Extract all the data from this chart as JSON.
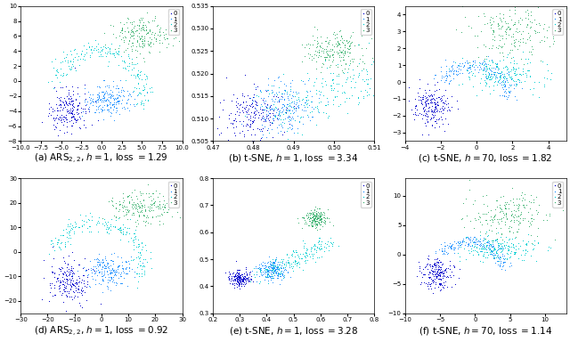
{
  "colors": [
    "#0000CD",
    "#1E90FF",
    "#00CED1",
    "#3CB371"
  ],
  "class_labels": [
    "0",
    "1",
    "2",
    "3"
  ],
  "marker_size": 2,
  "background_color": "#ffffff",
  "legend_fontsize": 5,
  "label_fontsize": 7.5,
  "tick_fontsize": 5,
  "panels": [
    {
      "id": "a",
      "title": "(a) ARS$_{2,2}$, $h = 1$, loss $= 1.29$",
      "xlim": [
        -10,
        10
      ],
      "ylim": [
        -8,
        10
      ],
      "xticks": [
        -10,
        -8,
        -6,
        -4,
        -2,
        0,
        2,
        4,
        6,
        8,
        10
      ],
      "shape": "ars_top"
    },
    {
      "id": "b",
      "title": "(b) t-SNE, $h = 1$, loss $= 3.34$",
      "xlim": [
        0.47,
        0.51
      ],
      "ylim": [
        0.505,
        0.535
      ],
      "shape": "tsne_h1_top"
    },
    {
      "id": "c",
      "title": "(c) t-SNE, $h = 70$, loss $= 1.82$",
      "xlim": [
        -4,
        5
      ],
      "ylim": [
        -3.5,
        4.5
      ],
      "shape": "tsne_h70_top"
    },
    {
      "id": "d",
      "title": "(d) ARS$_{2,2}$, $h = 1$, loss $= 0.92$",
      "xlim": [
        -30,
        30
      ],
      "ylim": [
        -25,
        30
      ],
      "shape": "ars_bot"
    },
    {
      "id": "e",
      "title": "(e) t-SNE, $h = 1$, loss $= 3.28$",
      "xlim": [
        0.2,
        0.8
      ],
      "ylim": [
        0.3,
        0.8
      ],
      "shape": "tsne_h1_bot"
    },
    {
      "id": "f",
      "title": "(f) t-SNE, $h = 70$, loss $= 1.14$",
      "xlim": [
        -10,
        13
      ],
      "ylim": [
        -10,
        13
      ],
      "shape": "tsne_h70_bot"
    }
  ]
}
